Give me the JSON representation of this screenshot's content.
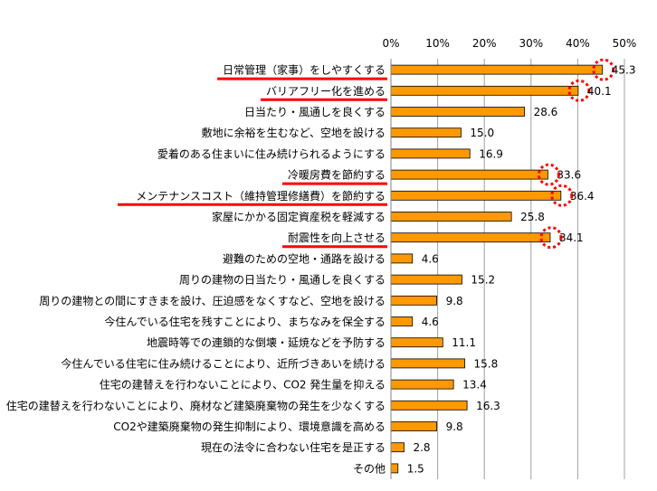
{
  "chart_data": {
    "type": "bar",
    "orientation": "horizontal",
    "title": "",
    "xlabel": "",
    "ylabel": "",
    "xlim": [
      0,
      50
    ],
    "x_ticks": [
      "0%",
      "10%",
      "20%",
      "30%",
      "40%",
      "50%"
    ],
    "grid": true,
    "bar_color": "#FF9900",
    "highlight_color": "#FF0000",
    "categories": [
      "日常管理（家事）をしやすくする",
      "バリアフリー化を進める",
      "日当たり・風通しを良くする",
      "敷地に余裕を生むなど、空地を設ける",
      "愛着のある住まいに住み続けられるようにする",
      "冷暖房費を節約する",
      "メンテナンスコスト（維持管理修繕費）を節約する",
      "家屋にかかる固定資産税を軽減する",
      "耐震性を向上させる",
      "避難のための空地・通路を設ける",
      "周りの建物の日当たり・風通しを良くする",
      "周りの建物との間にすきまを設け、圧迫感をなくすなど、空地を設ける",
      "今住んでいる住宅を残すことにより、まちなみを保全する",
      "地震時等での連鎖的な倒壊・延焼などを予防する",
      "今住んでいる住宅に住み続けることにより、近所づきあいを続ける",
      "住宅の建替えを行わないことにより、CO2 発生量を抑える",
      "住宅の建替えを行わないことにより、廃材など建築廃棄物の発生を少なくする",
      "CO2や建築廃棄物の発生抑制により、環境意識を高める",
      "現在の法令に合わない住宅を是正する",
      "その他"
    ],
    "values": [
      45.3,
      40.1,
      28.6,
      15.0,
      16.9,
      33.6,
      36.4,
      25.8,
      34.1,
      4.6,
      15.2,
      9.8,
      4.6,
      11.1,
      15.8,
      13.4,
      16.3,
      9.8,
      2.8,
      1.5
    ],
    "value_labels": [
      "45.3",
      "40.1",
      "28.6",
      "15.0",
      "16.9",
      "33.6",
      "36.4",
      "25.8",
      "34.1",
      "4.6",
      "15.2",
      "9.8",
      "4.6",
      "11.1",
      "15.8",
      "13.4",
      "16.3",
      "9.8",
      "2.8",
      "1.5"
    ],
    "highlighted": [
      true,
      true,
      false,
      false,
      false,
      true,
      true,
      false,
      true,
      false,
      false,
      false,
      false,
      false,
      false,
      false,
      false,
      false,
      false,
      false
    ]
  }
}
